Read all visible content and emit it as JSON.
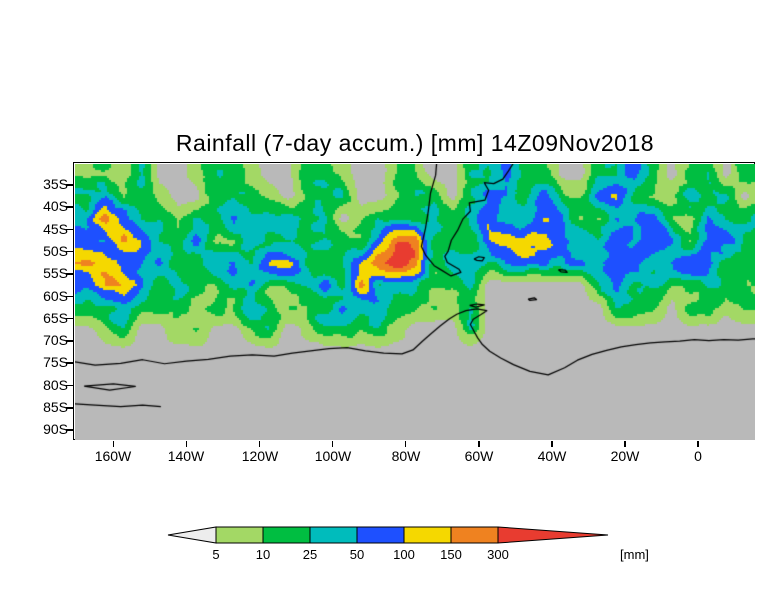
{
  "chart_data": {
    "type": "heatmap",
    "title": "Rainfall (7-day accum.) [mm] 14Z09Nov2018",
    "variable": "Rainfall (7-day accum.)",
    "valid_time": "14Z09Nov2018",
    "units": "[mm]",
    "axes": {
      "lat_labels": [
        "35S",
        "40S",
        "45S",
        "50S",
        "55S",
        "60S",
        "65S",
        "70S",
        "75S",
        "80S",
        "85S",
        "90S"
      ],
      "lon_labels": [
        "160W",
        "140W",
        "120W",
        "100W",
        "80W",
        "60W",
        "40W",
        "20W",
        "0"
      ]
    },
    "colorbar": {
      "levels": [
        5,
        10,
        25,
        50,
        100,
        150,
        300
      ],
      "labels": [
        "5",
        "10",
        "25",
        "50",
        "100",
        "150",
        "300"
      ],
      "unit_label": "[mm]",
      "below_color": "#ededed",
      "segment_colors": [
        "#a3d865",
        "#00be41",
        "#00bcbc",
        "#1e50ff",
        "#f5d800",
        "#ef8220"
      ],
      "above_color": "#e83c30"
    },
    "map": {
      "background_color": "#b9b9b9",
      "category_legend": [
        "<5",
        "5-10",
        "10-25",
        "25-50",
        "50-100",
        "100-150",
        "150-300",
        ">300"
      ],
      "lonlat_bounds": {
        "lon_min": -170.5,
        "lon_max": 15.6,
        "lat_min": -92.4,
        "lat_max": -30.5
      },
      "grid": {
        "lon_start": -170,
        "dlon": 5,
        "lat_start": -30,
        "dlat": -5,
        "values": [
          [
            2,
            2,
            1,
            2,
            0,
            0,
            1,
            2,
            2,
            1,
            0,
            0,
            2,
            2,
            1,
            0,
            0,
            2,
            2,
            0,
            0,
            2,
            2,
            4,
            2,
            2,
            0,
            0,
            2,
            2,
            4,
            2,
            0,
            2,
            2,
            0,
            2,
            2
          ],
          [
            2,
            4,
            2,
            2,
            1,
            0,
            0,
            2,
            2,
            2,
            1,
            0,
            1,
            2,
            2,
            0,
            0,
            1,
            2,
            2,
            0,
            2,
            4,
            4,
            2,
            3,
            2,
            2,
            4,
            4,
            2,
            2,
            2,
            4,
            2,
            2,
            0,
            2
          ],
          [
            4,
            6,
            4,
            2,
            2,
            1,
            2,
            2,
            4,
            2,
            2,
            3,
            2,
            2,
            0,
            1,
            2,
            2,
            2,
            4,
            2,
            2,
            4,
            3,
            3,
            4,
            4,
            2,
            2,
            4,
            4,
            4,
            2,
            2,
            4,
            2,
            2,
            2
          ],
          [
            4,
            4,
            6,
            4,
            2,
            2,
            4,
            2,
            2,
            4,
            3,
            2,
            2,
            3,
            2,
            2,
            4,
            6,
            6,
            2,
            2,
            2,
            4,
            4,
            4,
            4,
            4,
            4,
            3,
            4,
            3,
            4,
            4,
            2,
            4,
            4,
            2,
            2
          ],
          [
            6,
            5,
            4,
            4,
            4,
            2,
            2,
            4,
            4,
            2,
            4,
            4,
            2,
            2,
            3,
            4,
            6,
            7,
            6,
            2,
            3,
            2,
            2,
            3,
            4,
            4,
            3,
            3,
            3,
            4,
            4,
            2,
            3,
            4,
            4,
            2,
            2,
            2
          ],
          [
            4,
            6,
            6,
            4,
            2,
            3,
            2,
            2,
            3,
            4,
            2,
            2,
            3,
            5,
            2,
            5,
            2,
            3,
            3,
            2,
            2,
            3,
            0,
            0,
            0,
            0,
            0,
            0,
            2,
            3,
            2,
            3,
            2,
            2,
            3,
            2,
            2,
            2
          ],
          [
            2,
            2,
            3,
            2,
            2,
            2,
            1,
            2,
            2,
            3,
            2,
            2,
            2,
            2,
            3,
            2,
            3,
            2,
            2,
            2,
            1,
            2,
            0,
            0,
            0,
            0,
            0,
            0,
            0,
            2,
            2,
            2,
            0,
            2,
            2,
            1,
            2,
            2
          ],
          [
            0,
            1,
            2,
            0,
            0,
            2,
            2,
            0,
            0,
            1,
            2,
            0,
            1,
            2,
            2,
            1,
            2,
            1,
            0,
            0,
            0,
            2,
            0,
            0,
            0,
            0,
            0,
            0,
            0,
            0,
            0,
            0,
            0,
            0,
            0,
            0,
            0,
            0
          ],
          [
            0,
            0,
            0,
            0,
            0,
            0,
            0,
            0,
            0,
            0,
            0,
            0,
            0,
            0,
            0,
            0,
            0,
            0,
            0,
            0,
            0,
            0,
            0,
            0,
            0,
            0,
            0,
            0,
            0,
            0,
            0,
            0,
            0,
            0,
            0,
            0,
            0,
            0
          ],
          [
            0,
            0,
            0,
            0,
            0,
            0,
            0,
            0,
            0,
            0,
            0,
            0,
            0,
            0,
            0,
            0,
            0,
            0,
            0,
            0,
            0,
            0,
            0,
            0,
            0,
            0,
            0,
            0,
            0,
            0,
            0,
            0,
            0,
            0,
            0,
            0,
            0,
            0
          ],
          [
            0,
            0,
            0,
            0,
            0,
            0,
            0,
            0,
            0,
            0,
            0,
            0,
            0,
            0,
            0,
            0,
            0,
            0,
            0,
            0,
            0,
            0,
            0,
            0,
            0,
            0,
            0,
            0,
            0,
            0,
            0,
            0,
            0,
            0,
            0,
            0,
            0,
            0
          ],
          [
            0,
            0,
            0,
            0,
            0,
            0,
            0,
            0,
            0,
            0,
            0,
            0,
            0,
            0,
            0,
            0,
            0,
            0,
            0,
            0,
            0,
            0,
            0,
            0,
            0,
            0,
            0,
            0,
            0,
            0,
            0,
            0,
            0,
            0,
            0,
            0,
            0,
            0
          ],
          [
            0,
            0,
            0,
            0,
            0,
            0,
            0,
            0,
            0,
            0,
            0,
            0,
            0,
            0,
            0,
            0,
            0,
            0,
            0,
            0,
            0,
            0,
            0,
            0,
            0,
            0,
            0,
            0,
            0,
            0,
            0,
            0,
            0,
            0,
            0,
            0,
            0,
            0
          ]
        ]
      },
      "coastlines": [
        [
          [
            -71.5,
            -30
          ],
          [
            -71.8,
            -33
          ],
          [
            -73.2,
            -37
          ],
          [
            -73.8,
            -41
          ],
          [
            -74.6,
            -45
          ],
          [
            -75.7,
            -49
          ],
          [
            -74.5,
            -51
          ],
          [
            -72.2,
            -53.3
          ],
          [
            -70.2,
            -54.3
          ],
          [
            -67.6,
            -55.6
          ],
          [
            -65.9,
            -55.1
          ],
          [
            -64.9,
            -54.8
          ],
          [
            -65.4,
            -54.1
          ],
          [
            -68.6,
            -52.6
          ],
          [
            -69.3,
            -51.2
          ],
          [
            -68.4,
            -50.1
          ],
          [
            -67.5,
            -47.6
          ],
          [
            -65.8,
            -45.4
          ],
          [
            -64.3,
            -42.8
          ],
          [
            -62.3,
            -41.1
          ],
          [
            -62.6,
            -39.2
          ],
          [
            -58.3,
            -38.6
          ],
          [
            -57.3,
            -36.4
          ],
          [
            -58.5,
            -34.7
          ],
          [
            -55.9,
            -34.9
          ],
          [
            -53.4,
            -33.9
          ],
          [
            -51.9,
            -32.1
          ],
          [
            -50.3,
            -30
          ]
        ],
        [
          [
            -171,
            -74.8
          ],
          [
            -165,
            -75.6
          ],
          [
            -158,
            -75.2
          ],
          [
            -152,
            -74.4
          ],
          [
            -146,
            -75.3
          ],
          [
            -140,
            -74.7
          ],
          [
            -134,
            -74.3
          ],
          [
            -128,
            -73.6
          ],
          [
            -122,
            -73.3
          ],
          [
            -116,
            -73.6
          ],
          [
            -111,
            -72.9
          ],
          [
            -106,
            -72.4
          ],
          [
            -101,
            -71.9
          ],
          [
            -96,
            -71.7
          ],
          [
            -91,
            -72.4
          ],
          [
            -86,
            -72.9
          ],
          [
            -81,
            -73.1
          ],
          [
            -78,
            -72.2
          ],
          [
            -75.5,
            -70.3
          ],
          [
            -73,
            -68.5
          ],
          [
            -70.5,
            -66.8
          ],
          [
            -68,
            -65.2
          ],
          [
            -66,
            -64.2
          ],
          [
            -63.5,
            -63.4
          ],
          [
            -60.5,
            -63
          ],
          [
            -57.8,
            -63.4
          ],
          [
            -59.5,
            -64.3
          ],
          [
            -61.5,
            -65.3
          ],
          [
            -62.3,
            -66.5
          ],
          [
            -61.3,
            -68
          ],
          [
            -60.3,
            -69.5
          ],
          [
            -59,
            -71
          ],
          [
            -57,
            -72.5
          ],
          [
            -54,
            -74
          ],
          [
            -50.5,
            -75.5
          ],
          [
            -46,
            -77
          ],
          [
            -41,
            -77.8
          ],
          [
            -36.5,
            -76.2
          ],
          [
            -33,
            -74.5
          ],
          [
            -29,
            -73.2
          ],
          [
            -25,
            -72.3
          ],
          [
            -21,
            -71.5
          ],
          [
            -17,
            -71
          ],
          [
            -13,
            -70.6
          ],
          [
            -9,
            -70.4
          ],
          [
            -5,
            -70.2
          ],
          [
            -1,
            -69.9
          ],
          [
            3,
            -70.1
          ],
          [
            7,
            -69.9
          ],
          [
            11,
            -70
          ],
          [
            15,
            -69.7
          ],
          [
            20,
            -69.8
          ]
        ],
        [
          [
            -171,
            -84.3
          ],
          [
            -165,
            -84.6
          ],
          [
            -158,
            -84.9
          ],
          [
            -152,
            -84.6
          ],
          [
            -147,
            -84.9
          ]
        ],
        [
          [
            -168,
            -80.3
          ],
          [
            -160,
            -79.8
          ],
          [
            -154,
            -80.4
          ],
          [
            -161,
            -81.2
          ],
          [
            -168,
            -80.3
          ]
        ],
        [
          [
            -61.3,
            -51.8
          ],
          [
            -60,
            -51.3
          ],
          [
            -58.5,
            -51.5
          ],
          [
            -59,
            -52.2
          ],
          [
            -60.5,
            -52.1
          ],
          [
            -61.3,
            -51.8
          ]
        ],
        [
          [
            -38.2,
            -54.2
          ],
          [
            -36.3,
            -54.3
          ],
          [
            -35.8,
            -54.8
          ],
          [
            -37.5,
            -54.7
          ],
          [
            -38.2,
            -54.2
          ]
        ],
        [
          [
            -46.5,
            -60.8
          ],
          [
            -44.8,
            -60.5
          ],
          [
            -44.2,
            -60.9
          ],
          [
            -46,
            -61.1
          ],
          [
            -46.5,
            -60.8
          ]
        ],
        [
          [
            -62.5,
            -62.2
          ],
          [
            -60.5,
            -61.9
          ],
          [
            -58.5,
            -62.1
          ],
          [
            -60.8,
            -62.6
          ],
          [
            -62.5,
            -62.2
          ]
        ]
      ]
    }
  }
}
